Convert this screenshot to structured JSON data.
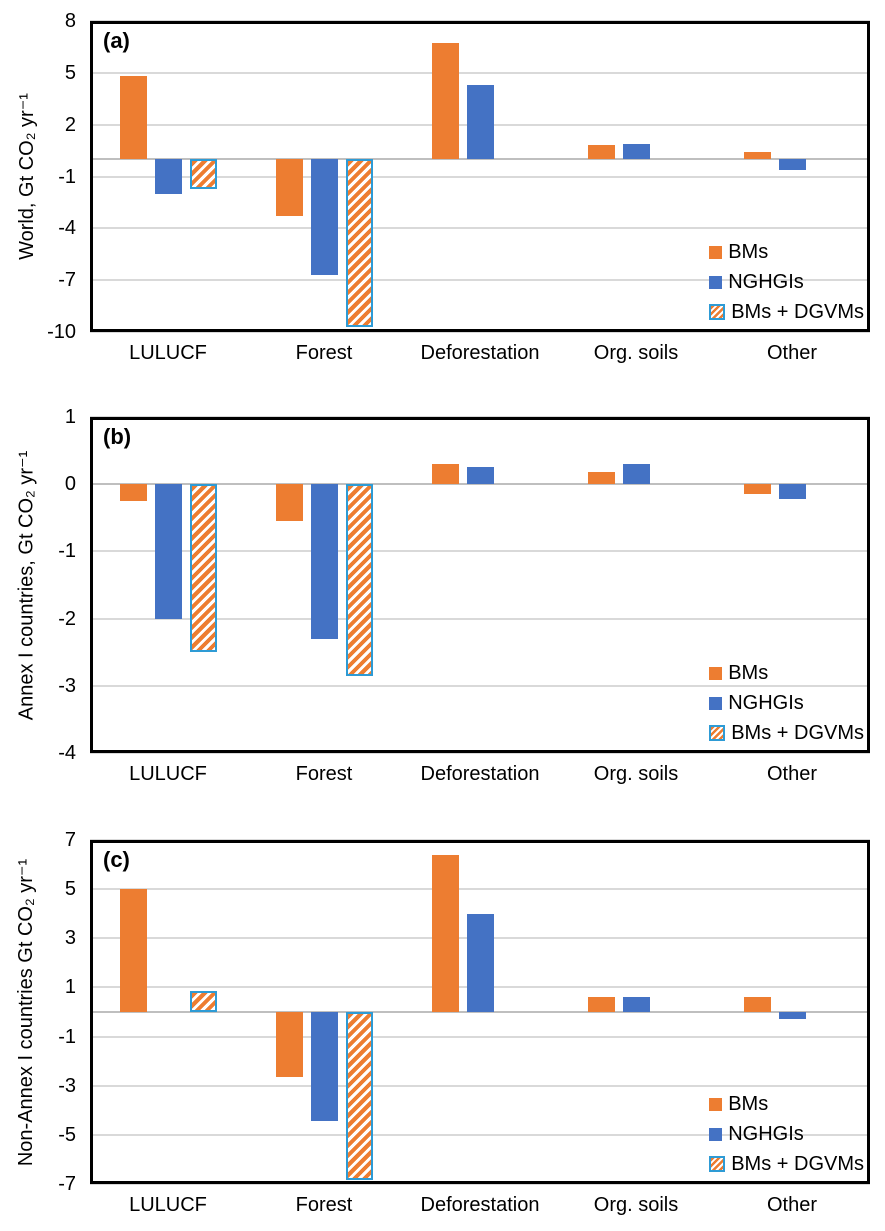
{
  "figure_background": "#ffffff",
  "colors": {
    "bms": "#ED7D31",
    "nghgis": "#4472C4",
    "hatch_stripe": "#ED7D31",
    "hatch_background": "#ffffff",
    "hatch_border": "#2E9BD5",
    "gridline": "#D9D9D9",
    "zero_axis": "#BFBFBF",
    "plot_border": "#000000",
    "text": "#000000"
  },
  "legend": {
    "position": "bottom-right",
    "items": [
      {
        "label": "BMs",
        "swatch": "solid-orange"
      },
      {
        "label": "NGHGIs",
        "swatch": "solid-blue"
      },
      {
        "label": "BMs + DGVMs",
        "swatch": "orange-hatch-blue-border"
      }
    ]
  },
  "chart_data": [
    {
      "type": "bar",
      "panel_label": "(a)",
      "title": "",
      "xlabel": "",
      "ylabel": "World, Gt CO₂ yr⁻¹",
      "categories": [
        "LULUCF",
        "Forest",
        "Deforestation",
        "Org. soils",
        "Other"
      ],
      "series": [
        {
          "name": "BMs",
          "values": [
            4.8,
            -3.3,
            6.7,
            0.8,
            0.4
          ]
        },
        {
          "name": "NGHGIs",
          "values": [
            -2.0,
            -6.7,
            4.3,
            0.9,
            -0.6
          ]
        },
        {
          "name": "BMs + DGVMs",
          "values": [
            -1.7,
            -9.7,
            null,
            null,
            null
          ]
        }
      ],
      "ylim": [
        -10,
        8
      ],
      "yticks": [
        8,
        5,
        2,
        -1,
        -4,
        -7,
        -10
      ],
      "grid": true,
      "legend_position": "bottom-right"
    },
    {
      "type": "bar",
      "panel_label": "(b)",
      "title": "",
      "xlabel": "",
      "ylabel": "Annex I countries, Gt CO₂ yr⁻¹",
      "categories": [
        "LULUCF",
        "Forest",
        "Deforestation",
        "Org. soils",
        "Other"
      ],
      "series": [
        {
          "name": "BMs",
          "values": [
            -0.25,
            -0.55,
            0.3,
            0.18,
            -0.15
          ]
        },
        {
          "name": "NGHGIs",
          "values": [
            -2.0,
            -2.3,
            0.25,
            0.3,
            -0.22
          ]
        },
        {
          "name": "BMs + DGVMs",
          "values": [
            -2.5,
            -2.85,
            null,
            null,
            null
          ]
        }
      ],
      "ylim": [
        -4,
        1
      ],
      "yticks": [
        1,
        0,
        -1,
        -2,
        -3,
        -4
      ],
      "grid": true,
      "legend_position": "bottom-right"
    },
    {
      "type": "bar",
      "panel_label": "(c)",
      "title": "",
      "xlabel": "",
      "ylabel": "Non-Annex I countries Gt CO₂ yr⁻¹",
      "categories": [
        "LULUCF",
        "Forest",
        "Deforestation",
        "Org. soils",
        "Other"
      ],
      "series": [
        {
          "name": "BMs",
          "values": [
            5.0,
            -2.65,
            6.4,
            0.6,
            0.6
          ]
        },
        {
          "name": "NGHGIs",
          "values": [
            0.0,
            -4.45,
            4.0,
            0.6,
            -0.3
          ]
        },
        {
          "name": "BMs + DGVMs",
          "values": [
            0.85,
            -6.85,
            null,
            null,
            null
          ]
        }
      ],
      "ylim": [
        -7,
        7
      ],
      "yticks": [
        7,
        5,
        3,
        1,
        -1,
        -3,
        -5,
        -7
      ],
      "grid": true,
      "legend_position": "bottom-right"
    }
  ]
}
